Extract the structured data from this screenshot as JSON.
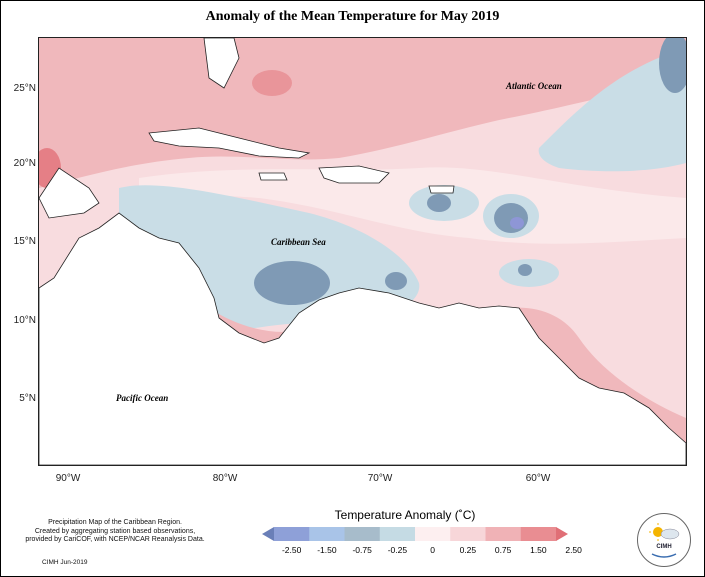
{
  "title": "Anomaly of the Mean Temperature for May 2019",
  "map": {
    "y_axis_labels": [
      "25°N",
      "20°N",
      "15°N",
      "10°N",
      "5°N"
    ],
    "x_axis_labels": [
      "90°W",
      "80°W",
      "70°W",
      "60°W"
    ],
    "ocean_labels": {
      "atlantic": "Atlantic Ocean",
      "caribbean": "Caribbean Sea",
      "pacific": "Pacific Ocean"
    }
  },
  "legend": {
    "title": "Temperature Anomaly (˚C)",
    "ticks": [
      "-2.50",
      "-1.50",
      "-0.75",
      "-0.25",
      "0",
      "0.25",
      "0.75",
      "1.50",
      "2.50"
    ],
    "colors": [
      "#6a7fb8",
      "#8ea0d8",
      "#a9c4e8",
      "#a7bccb",
      "#c5dbe4",
      "#fdeff0",
      "#f7d6d9",
      "#f0b2b6",
      "#e98d92",
      "#e06f76"
    ]
  },
  "credit": {
    "line1": "Precipitation Map of the Caribbean Region.",
    "line2": "Created by aggregating station based observations,",
    "line3": "provided by CariCOF, with NCEP/NCAR Reanalysis Data.",
    "date": "CIMH Jun-2019"
  },
  "logo": {
    "text": "CIMH",
    "icon": "sun-cloud-icon"
  }
}
